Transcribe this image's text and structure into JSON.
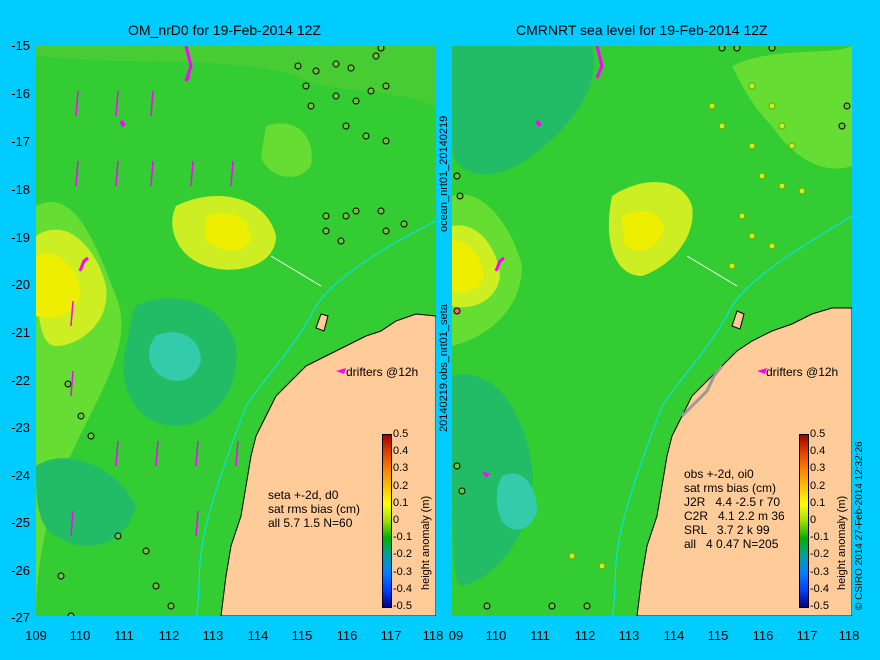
{
  "left_panel": {
    "title": "OM_nrD0 for 19-Feb-2014 12Z",
    "drifters_label": "drifters @12h",
    "stats": [
      "seta +-2d, d0",
      "sat rms bias (cm)",
      "all 5.7 1.5 N=60"
    ],
    "side_label_top": "ocean_nrt01_20140219",
    "side_label_bottom": "20140219.obs_nrt01_seta"
  },
  "right_panel": {
    "title": "CMRNRT sea level  for 19-Feb-2014 12Z",
    "drifters_label": "drifters @12h",
    "stats": [
      "obs +-2d, oi0",
      "sat rms bias (cm)",
      "J2R   4.4 -2.5 r 70",
      "C2R   4.1 2.2 m 36",
      "SRL   3.7 2 k 99",
      "all   4 0.47 N=205"
    ],
    "credit": "© CSIRO 2014  27-Feb-2014 12:32:26"
  },
  "axes": {
    "y_ticks": [
      "-15",
      "-16",
      "-17",
      "-18",
      "-19",
      "-20",
      "-21",
      "-22",
      "-23",
      "-24",
      "-25",
      "-26",
      "-27"
    ],
    "x_ticks_left": [
      "109",
      "110",
      "111",
      "112",
      "113",
      "114",
      "115",
      "116",
      "117",
      "118"
    ],
    "x_ticks_right": [
      "09",
      "110",
      "111",
      "112",
      "113",
      "114",
      "115",
      "116",
      "117",
      "118"
    ]
  },
  "colorbar": {
    "label": "height anomaly (m)",
    "ticks": [
      "0.5",
      "0.4",
      "0.3",
      "0.2",
      "0.1",
      "0",
      "-0.1",
      "-0.2",
      "-0.3",
      "-0.4",
      "-0.5"
    ],
    "colors": [
      "#a00000",
      "#e04000",
      "#ff8000",
      "#ffc000",
      "#ffff00",
      "#a0e000",
      "#00b000",
      "#00a0a0",
      "#0080ff",
      "#0040ff",
      "#000080"
    ]
  }
}
